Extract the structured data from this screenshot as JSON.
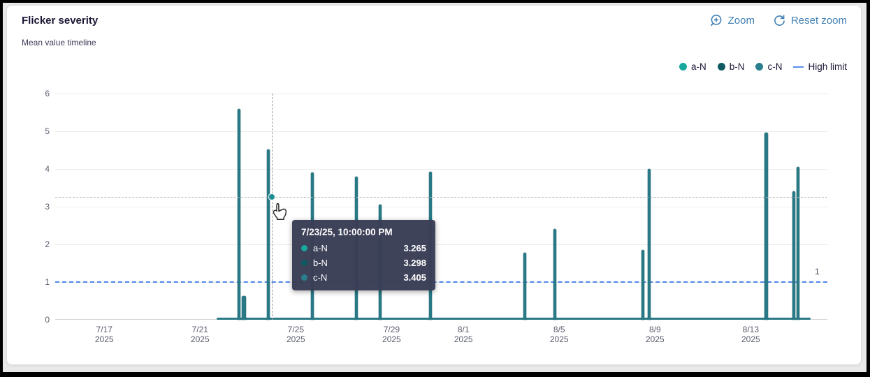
{
  "header": {
    "title": "Flicker severity",
    "subtitle": "Mean value timeline"
  },
  "toolbar": {
    "zoom_label": "Zoom",
    "reset_zoom_label": "Reset zoom",
    "accent_color": "#4180b4"
  },
  "legend": [
    {
      "label": "a-N",
      "type": "dot",
      "color": "#17a89e"
    },
    {
      "label": "b-N",
      "type": "dot",
      "color": "#0e5a60"
    },
    {
      "label": "c-N",
      "type": "dot",
      "color": "#2a7f8f"
    },
    {
      "label": "High limit",
      "type": "line",
      "color": "#5b8def"
    }
  ],
  "tooltip": {
    "header": "7/23/25, 10:00:00 PM",
    "rows": [
      {
        "label": "a-N",
        "value": "3.265",
        "color": "#17a89e"
      },
      {
        "label": "b-N",
        "value": "3.298",
        "color": "#0e5a60"
      },
      {
        "label": "c-N",
        "value": "3.405",
        "color": "#2a7f8f"
      }
    ]
  },
  "chart_data": {
    "type": "line",
    "title": "Flicker severity",
    "subtitle": "Mean value timeline",
    "series_names": [
      "a-N",
      "b-N",
      "c-N"
    ],
    "spike_color": "#287885",
    "ylim": [
      0,
      6
    ],
    "yticks": [
      0,
      1,
      2,
      3,
      4,
      5,
      6
    ],
    "x_axis": {
      "min_day": -2.05,
      "max_day": 30.2,
      "epoch_label": "days since 7/17/2025"
    },
    "x_ticks": [
      {
        "label": "7/17",
        "year": "2025",
        "day": 0
      },
      {
        "label": "7/21",
        "year": "2025",
        "day": 4
      },
      {
        "label": "7/25",
        "year": "2025",
        "day": 8
      },
      {
        "label": "7/29",
        "year": "2025",
        "day": 12
      },
      {
        "label": "8/1",
        "year": "2025",
        "day": 15
      },
      {
        "label": "8/5",
        "year": "2025",
        "day": 19
      },
      {
        "label": "8/9",
        "year": "2025",
        "day": 23
      },
      {
        "label": "8/13",
        "year": "2025",
        "day": 27
      }
    ],
    "high_limit": {
      "value": 1,
      "label": "1"
    },
    "baseline": {
      "from_day": 4.7,
      "to_day": 29.5,
      "value": 0
    },
    "spikes": [
      {
        "day": 5.63,
        "value": 5.6,
        "w": 4
      },
      {
        "day": 5.82,
        "value": 0.63,
        "w": 6
      },
      {
        "day": 6.85,
        "value": 4.52,
        "w": 4
      },
      {
        "day": 8.68,
        "value": 3.9,
        "w": 4
      },
      {
        "day": 10.52,
        "value": 3.8,
        "w": 4
      },
      {
        "day": 11.53,
        "value": 3.05,
        "w": 4
      },
      {
        "day": 13.63,
        "value": 3.93,
        "w": 4
      },
      {
        "day": 17.57,
        "value": 1.78,
        "w": 4
      },
      {
        "day": 18.83,
        "value": 2.4,
        "w": 4
      },
      {
        "day": 22.5,
        "value": 1.85,
        "w": 4
      },
      {
        "day": 22.77,
        "value": 4.0,
        "w": 4
      },
      {
        "day": 27.65,
        "value": 4.97,
        "w": 5
      },
      {
        "day": 28.8,
        "value": 3.4,
        "w": 4
      },
      {
        "day": 28.97,
        "value": 4.05,
        "w": 4
      }
    ],
    "hover": {
      "day": 7.0,
      "value": 3.265,
      "timestamp": "7/23/25, 10:00:00 PM"
    }
  }
}
